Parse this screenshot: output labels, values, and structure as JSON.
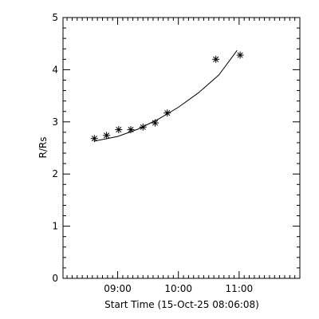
{
  "chart_data": {
    "type": "scatter",
    "title": "",
    "xlabel": "Start Time (15-Oct-25 08:06:08)",
    "ylabel": "R/Rs",
    "xlim": [
      "08:06",
      "12:00"
    ],
    "ylim": [
      0,
      5
    ],
    "x_ticks": [
      "09:00",
      "10:00",
      "11:00"
    ],
    "y_ticks": [
      "0",
      "1",
      "2",
      "3",
      "4",
      "5"
    ],
    "grid": false,
    "legend": "none",
    "points": [
      {
        "x": "08:37",
        "y": 2.68
      },
      {
        "x": "08:49",
        "y": 2.74
      },
      {
        "x": "09:01",
        "y": 2.85
      },
      {
        "x": "09:13",
        "y": 2.85
      },
      {
        "x": "09:25",
        "y": 2.9
      },
      {
        "x": "09:37",
        "y": 2.98
      },
      {
        "x": "09:49",
        "y": 3.17
      },
      {
        "x": "10:37",
        "y": 4.2
      },
      {
        "x": "11:01",
        "y": 4.28
      }
    ],
    "fit_curve": [
      {
        "x": "08:37",
        "y": 2.63
      },
      {
        "x": "09:00",
        "y": 2.72
      },
      {
        "x": "09:20",
        "y": 2.86
      },
      {
        "x": "09:40",
        "y": 3.05
      },
      {
        "x": "10:00",
        "y": 3.28
      },
      {
        "x": "10:20",
        "y": 3.56
      },
      {
        "x": "10:40",
        "y": 3.9
      },
      {
        "x": "10:58",
        "y": 4.37
      }
    ]
  }
}
